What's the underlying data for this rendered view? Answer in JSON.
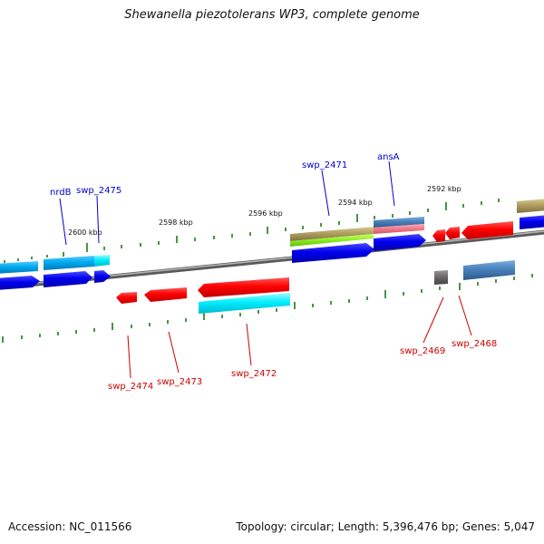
{
  "title": "Shewanella piezotolerans WP3, complete genome",
  "footer": {
    "accession": "Accession: NC_011566",
    "topology": "Topology: circular; Length: 5,396,476 bp; Genes: 5,047"
  },
  "colors": {
    "backbone": "#888888",
    "plus_label": "#0000cc",
    "minus_label": "#cc0000",
    "tick": "#1a7a1a"
  },
  "scale_labels": [
    "2600 kbp",
    "2598 kbp",
    "2596 kbp",
    "2594 kbp",
    "2592 kbp"
  ],
  "plus_genes": [
    {
      "name": "nrdB",
      "color": "#0000cc"
    },
    {
      "name": "swp_2475",
      "color": "#0000cc"
    },
    {
      "name": "swp_2471",
      "color": "#0000cc"
    },
    {
      "name": "ansA",
      "color": "#0000cc"
    }
  ],
  "minus_genes": [
    {
      "name": "swp_2474",
      "color": "#cc0000"
    },
    {
      "name": "swp_2473",
      "color": "#cc0000"
    },
    {
      "name": "swp_2472",
      "color": "#cc0000"
    },
    {
      "name": "swp_2469",
      "color": "#cc0000"
    },
    {
      "name": "swp_2468",
      "color": "#cc0000"
    }
  ]
}
